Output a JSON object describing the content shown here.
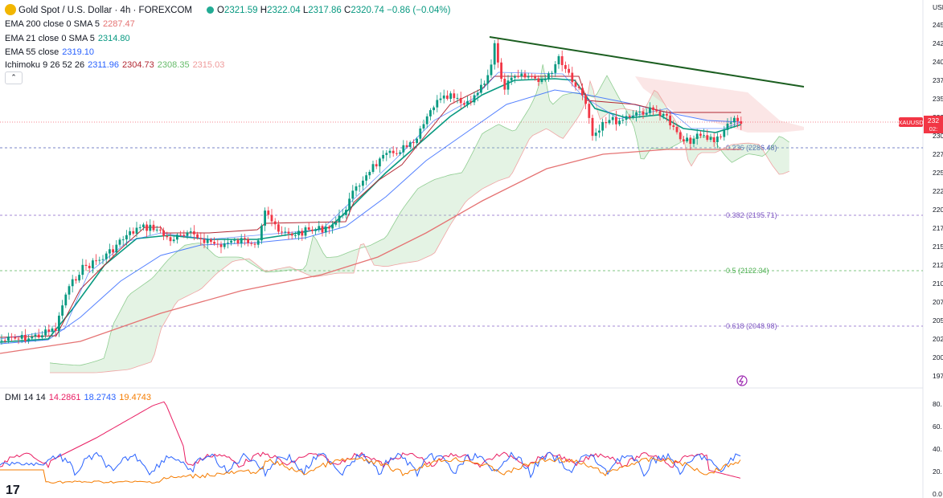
{
  "header": {
    "symbol_title": "Gold Spot / U.S. Dollar · 4h · FOREXCOM",
    "ohlc": {
      "open_label": "O",
      "open": "2321.59",
      "high_label": "H",
      "high": "2322.04",
      "low_label": "L",
      "low": "2317.86",
      "close_label": "C",
      "close": "2320.74",
      "change": "−0.86 (−0.04%)"
    }
  },
  "indicators": [
    {
      "label": "EMA 200 close 0 SMA 5",
      "value": "2287.47",
      "color": "#e57373"
    },
    {
      "label": "EMA 21 close 0 SMA 5",
      "value": "2314.80",
      "color": "#089981"
    },
    {
      "label": "EMA 55 close",
      "value": "2319.10",
      "color": "#2962ff"
    },
    {
      "label": "Ichimoku 9 26 52 26",
      "values": [
        "2311.96",
        "2304.73",
        "2308.35",
        "2315.03"
      ],
      "colors": [
        "#2962ff",
        "#b22833",
        "#66bb6a",
        "#ef9a9a"
      ]
    }
  ],
  "collapse_icon": "chevron-up-icon",
  "price_axis": {
    "currency": "USD",
    "ticks": [
      "245",
      "242",
      "240",
      "237",
      "235",
      "232",
      "230",
      "227",
      "225",
      "222",
      "220",
      "217",
      "215",
      "212",
      "210",
      "207",
      "205",
      "202",
      "200",
      "197"
    ],
    "symbol_tag": "XAUUSD",
    "last_price": "232",
    "countdown": "02:"
  },
  "fibonacci": [
    {
      "label": "0.236 (2286.48)",
      "color": "#3f51b5"
    },
    {
      "label": "0.382 (2195.71)",
      "color": "#7e57c2"
    },
    {
      "label": "0.5 (2122.34)",
      "color": "#4caf50"
    },
    {
      "label": "0.618 (2048.98)",
      "color": "#7e57c2"
    }
  ],
  "dmi": {
    "label": "DMI 14 14",
    "values": [
      "14.2861",
      "18.2743",
      "19.4743"
    ],
    "colors": [
      "#e91e63",
      "#2962ff",
      "#f57c00"
    ],
    "axis_ticks": [
      "80.",
      "60.",
      "40.",
      "20.",
      "0.0"
    ]
  },
  "colors": {
    "up_candle": "#089981",
    "down_candle": "#f23645",
    "trendline": "#1b5e20",
    "last_price_tag": "#f23645"
  },
  "tradingview_logo": "17"
}
